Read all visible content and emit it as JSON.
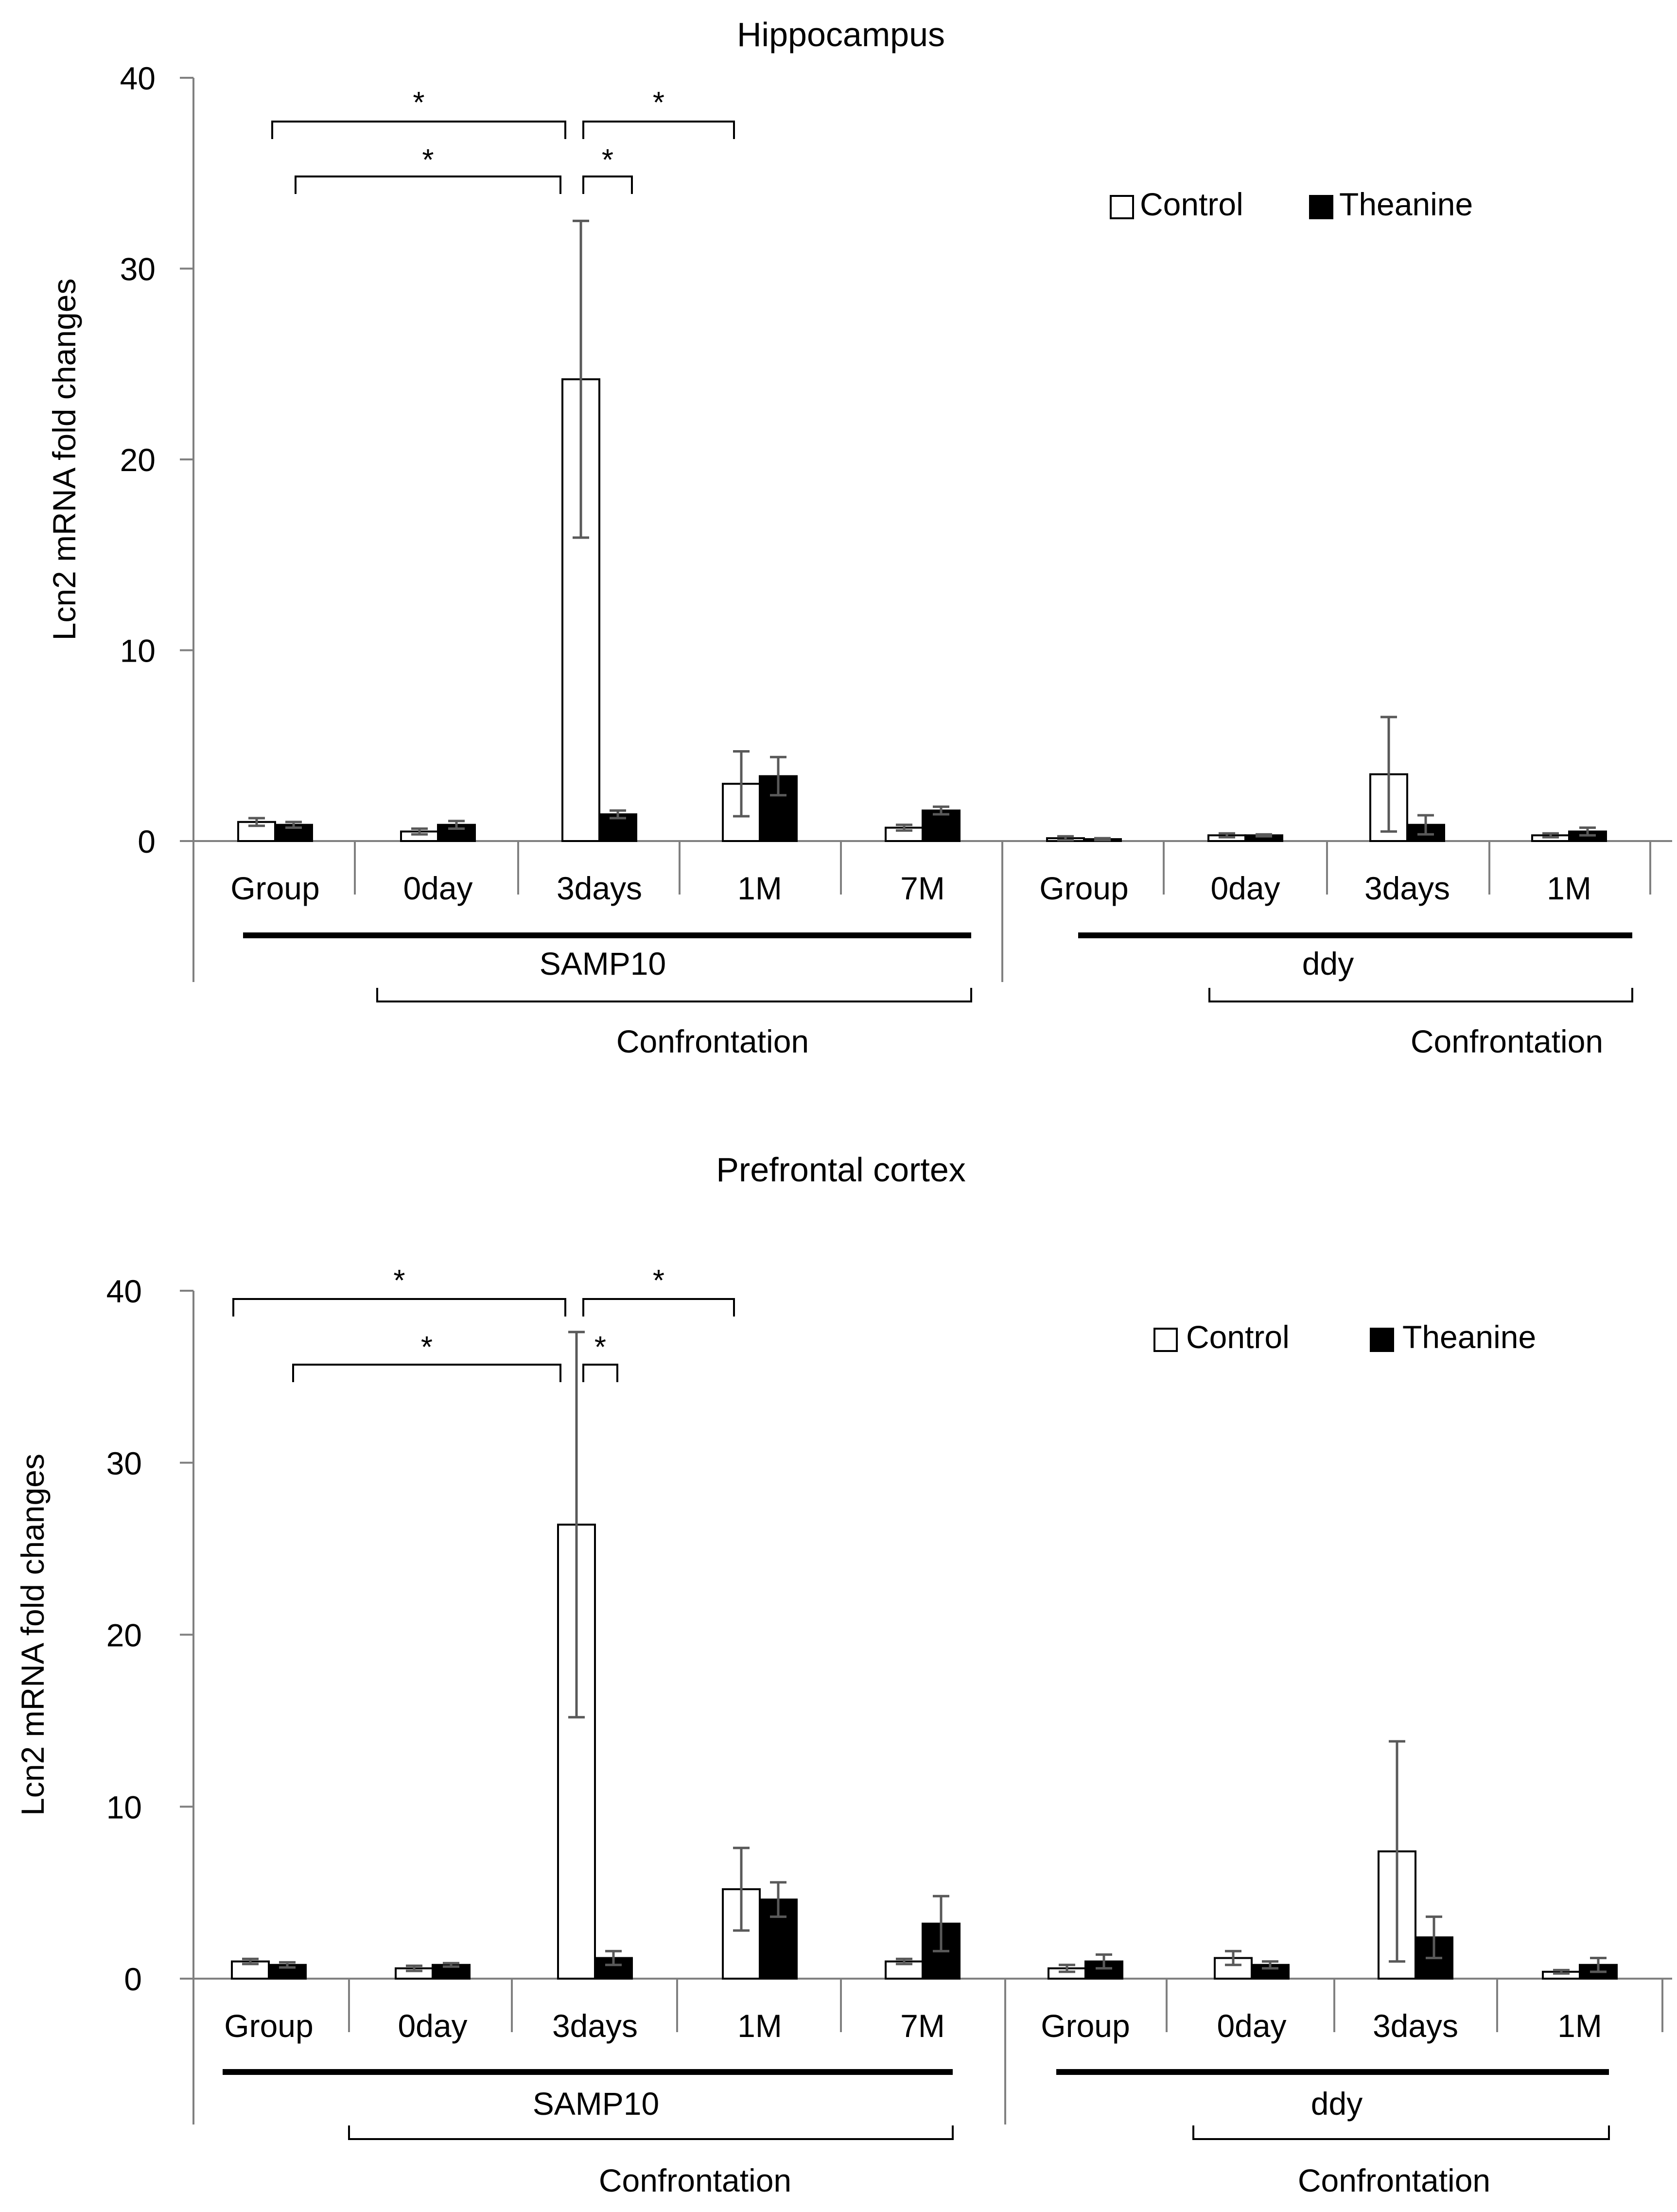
{
  "legend": {
    "control": "Control",
    "theanine": "Theanine"
  },
  "group_labels": {
    "samp10": "SAMP10",
    "ddy": "ddy",
    "confrontation": "Confrontation"
  },
  "sig_marker": "*",
  "colors": {
    "control_fill": "#ffffff",
    "theanine_fill": "#000000",
    "error_bar": "#595959",
    "axis": "#808080"
  },
  "chart_data": [
    {
      "type": "bar",
      "title": "Hippocampus",
      "xlabel": "",
      "ylabel": "Lcn2 mRNA fold changes",
      "ylim": [
        0,
        40
      ],
      "yticks": [
        0,
        10,
        20,
        30,
        40
      ],
      "legend_position": "top-right",
      "grid": false,
      "categories": [
        "Group",
        "0day",
        "3days",
        "1M",
        "7M",
        "Group",
        "0day",
        "3days",
        "1M"
      ],
      "series": [
        {
          "name": "Control",
          "values": [
            1.0,
            0.5,
            24.2,
            3.0,
            0.7,
            0.15,
            0.3,
            3.5,
            0.3
          ],
          "errors": [
            0.2,
            0.15,
            8.3,
            1.7,
            0.15,
            0.1,
            0.1,
            3.0,
            0.1
          ]
        },
        {
          "name": "Theanine",
          "values": [
            0.85,
            0.85,
            1.4,
            3.4,
            1.6,
            0.1,
            0.3,
            0.85,
            0.5
          ],
          "errors": [
            0.15,
            0.2,
            0.2,
            1.0,
            0.2,
            0.05,
            0.05,
            0.5,
            0.2
          ]
        }
      ],
      "significance": [
        {
          "from": 0,
          "to": 2,
          "label": "*"
        },
        {
          "from": 0,
          "to": 2,
          "label": "*"
        },
        {
          "from": 2,
          "to": 3,
          "label": "*"
        },
        {
          "from": 2,
          "to": 2,
          "label": "*"
        }
      ]
    },
    {
      "type": "bar",
      "title": "Prefrontal cortex",
      "xlabel": "",
      "ylabel": "Lcn2 mRNA fold changes",
      "ylim": [
        0,
        40
      ],
      "yticks": [
        0,
        10,
        20,
        30,
        40
      ],
      "legend_position": "top-right",
      "grid": false,
      "categories": [
        "Group",
        "0day",
        "3days",
        "1M",
        "7M",
        "Group",
        "0day",
        "3days",
        "1M"
      ],
      "series": [
        {
          "name": "Control",
          "values": [
            1.0,
            0.6,
            26.4,
            5.2,
            1.0,
            0.6,
            1.2,
            7.4,
            0.4
          ],
          "errors": [
            0.15,
            0.15,
            11.2,
            2.4,
            0.15,
            0.2,
            0.4,
            6.4,
            0.1
          ]
        },
        {
          "name": "Theanine",
          "values": [
            0.8,
            0.8,
            1.2,
            4.6,
            3.2,
            1.0,
            0.8,
            2.4,
            0.8
          ],
          "errors": [
            0.15,
            0.1,
            0.4,
            1.0,
            1.6,
            0.4,
            0.2,
            1.2,
            0.4
          ]
        }
      ],
      "significance": [
        {
          "from": 0,
          "to": 2,
          "label": "*"
        },
        {
          "from": 0,
          "to": 2,
          "label": "*"
        },
        {
          "from": 2,
          "to": 3,
          "label": "*"
        },
        {
          "from": 2,
          "to": 2,
          "label": "*"
        }
      ]
    }
  ]
}
